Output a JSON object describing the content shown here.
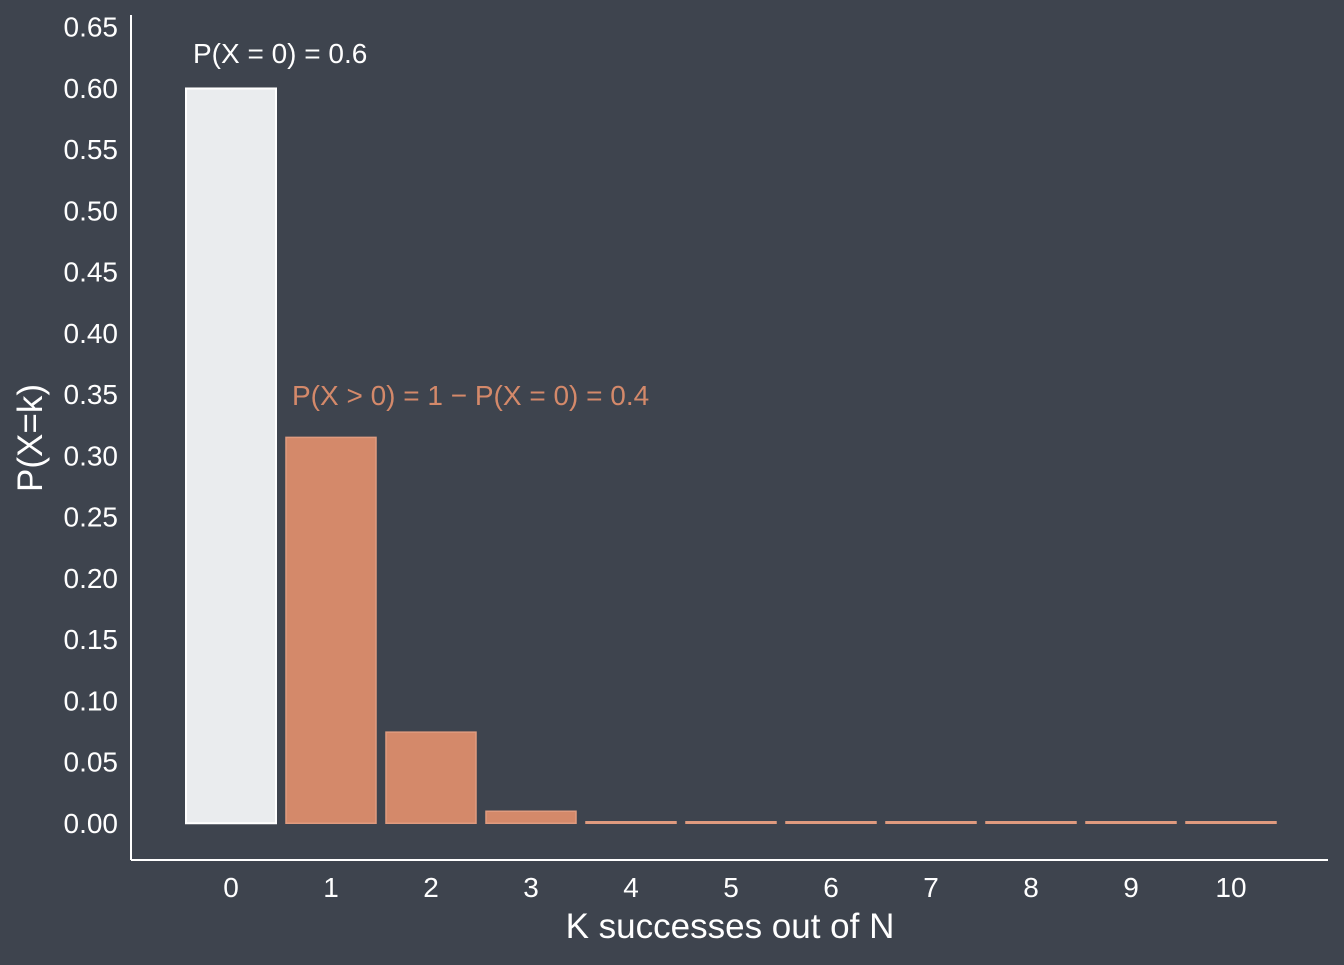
{
  "chart_data": {
    "type": "bar",
    "title": "",
    "xlabel": "K successes out of N",
    "ylabel": "P(X=k)",
    "categories": [
      "0",
      "1",
      "2",
      "3",
      "4",
      "5",
      "6",
      "7",
      "8",
      "9",
      "10"
    ],
    "values": [
      0.6,
      0.3151,
      0.0744,
      0.0098,
      0.0007,
      0.0001,
      0.0,
      0.0,
      0.0,
      0.0,
      0.0
    ],
    "ylim": [
      -0.03,
      0.66
    ],
    "yticks": [
      "0.00",
      "0.05",
      "0.10",
      "0.15",
      "0.20",
      "0.25",
      "0.30",
      "0.35",
      "0.40",
      "0.45",
      "0.50",
      "0.55",
      "0.60",
      "0.65"
    ],
    "grid": false,
    "annotations": [
      {
        "text": "P(X = 0) = 0.6",
        "color": "#ffffff"
      },
      {
        "text": "P(X > 0) = 1 − P(X = 0) = 0.4",
        "color": "#d4896a"
      }
    ]
  },
  "colors": {
    "background": "#3e444e",
    "axis": "#ffffff",
    "highlight_bar": "#eaecee",
    "highlight_edge": "#ffffff",
    "other_bars": "#d4896a",
    "other_edge": "#e09b7f",
    "text": "#ffffff"
  }
}
